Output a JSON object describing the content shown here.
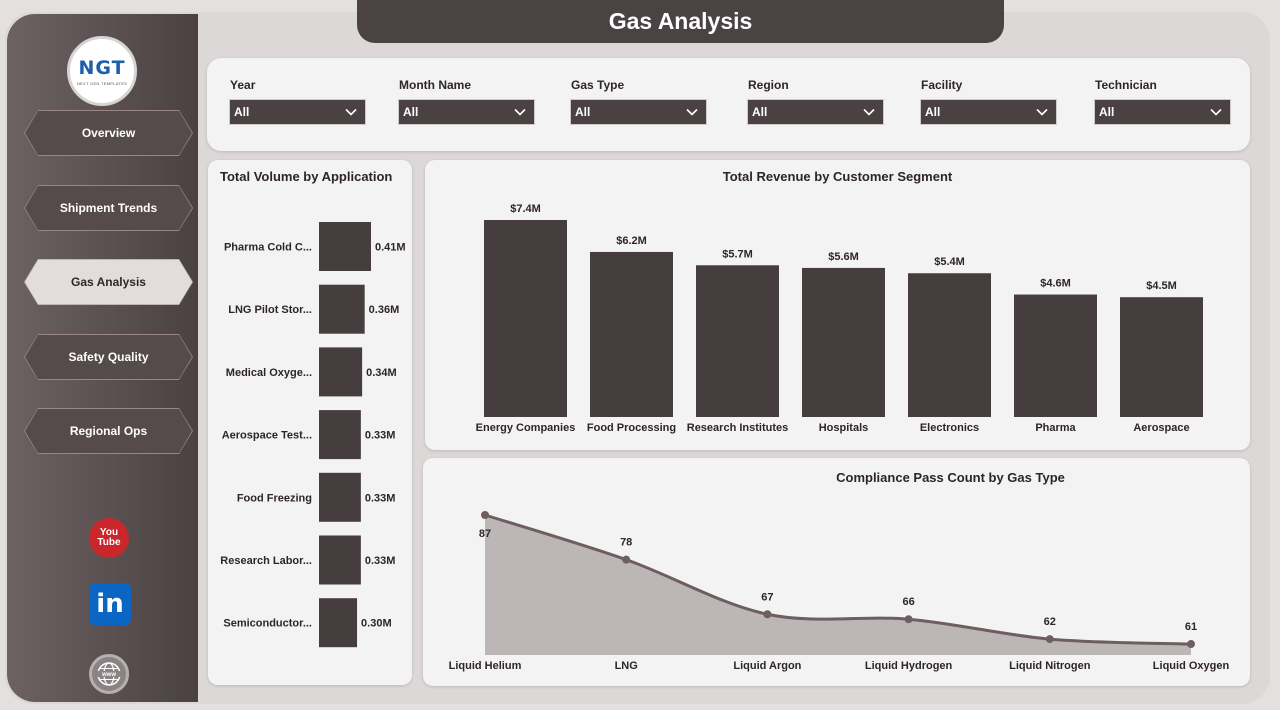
{
  "app": {
    "title": "Gas Analysis",
    "logo": {
      "mark": "NGT",
      "tagline": "NEXT GEN TEMPLATES"
    }
  },
  "nav": {
    "items": [
      {
        "label": "Overview",
        "active": false
      },
      {
        "label": "Shipment Trends",
        "active": false
      },
      {
        "label": "Gas Analysis",
        "active": true
      },
      {
        "label": "Safety Quality",
        "active": false
      },
      {
        "label": "Regional Ops",
        "active": false
      }
    ],
    "social": {
      "youtube_line1": "You",
      "youtube_line2": "Tube",
      "linkedin": "in"
    }
  },
  "filters": [
    {
      "label": "Year",
      "value": "All"
    },
    {
      "label": "Month Name",
      "value": "All"
    },
    {
      "label": "Gas Type",
      "value": "All"
    },
    {
      "label": "Region",
      "value": "All"
    },
    {
      "label": "Facility",
      "value": "All"
    },
    {
      "label": "Technician",
      "value": "All"
    }
  ],
  "panels": {
    "volume_title": "Total Volume by Application",
    "revenue_title": "Total Revenue by Customer Segment",
    "compliance_title": "Compliance Pass Count by Gas Type"
  },
  "colors": {
    "bar": "#463d3e",
    "area_fill": "#bcb6b6",
    "line": "#6e5e60",
    "accent_dark": "#4b4243"
  },
  "chart_data": [
    {
      "type": "bar",
      "orientation": "horizontal",
      "title": "Total Volume by Application",
      "categories": [
        "Pharma Cold C...",
        "LNG Pilot Stor...",
        "Medical Oxyge...",
        "Aerospace Test...",
        "Food Freezing",
        "Research Labor...",
        "Semiconductor..."
      ],
      "values": [
        0.41,
        0.36,
        0.34,
        0.33,
        0.33,
        0.33,
        0.3
      ],
      "value_labels": [
        "0.41M",
        "0.36M",
        "0.34M",
        "0.33M",
        "0.33M",
        "0.33M",
        "0.30M"
      ],
      "xlim": [
        0,
        0.45
      ]
    },
    {
      "type": "bar",
      "title": "Total Revenue by Customer Segment",
      "categories": [
        "Energy Companies",
        "Food Processing",
        "Research Institutes",
        "Hospitals",
        "Electronics",
        "Pharma",
        "Aerospace"
      ],
      "values": [
        7.4,
        6.2,
        5.7,
        5.6,
        5.4,
        4.6,
        4.5
      ],
      "value_labels": [
        "$7.4M",
        "$6.2M",
        "$5.7M",
        "$5.6M",
        "$5.4M",
        "$4.6M",
        "$4.5M"
      ],
      "ylim": [
        0,
        7.4
      ]
    },
    {
      "type": "area",
      "title": "Compliance Pass Count by Gas Type",
      "categories": [
        "Liquid Helium",
        "LNG",
        "Liquid Argon",
        "Liquid Hydrogen",
        "Liquid Nitrogen",
        "Liquid Oxygen"
      ],
      "values": [
        87,
        78,
        67,
        66,
        62,
        61
      ],
      "ylim": [
        60,
        87
      ]
    }
  ]
}
